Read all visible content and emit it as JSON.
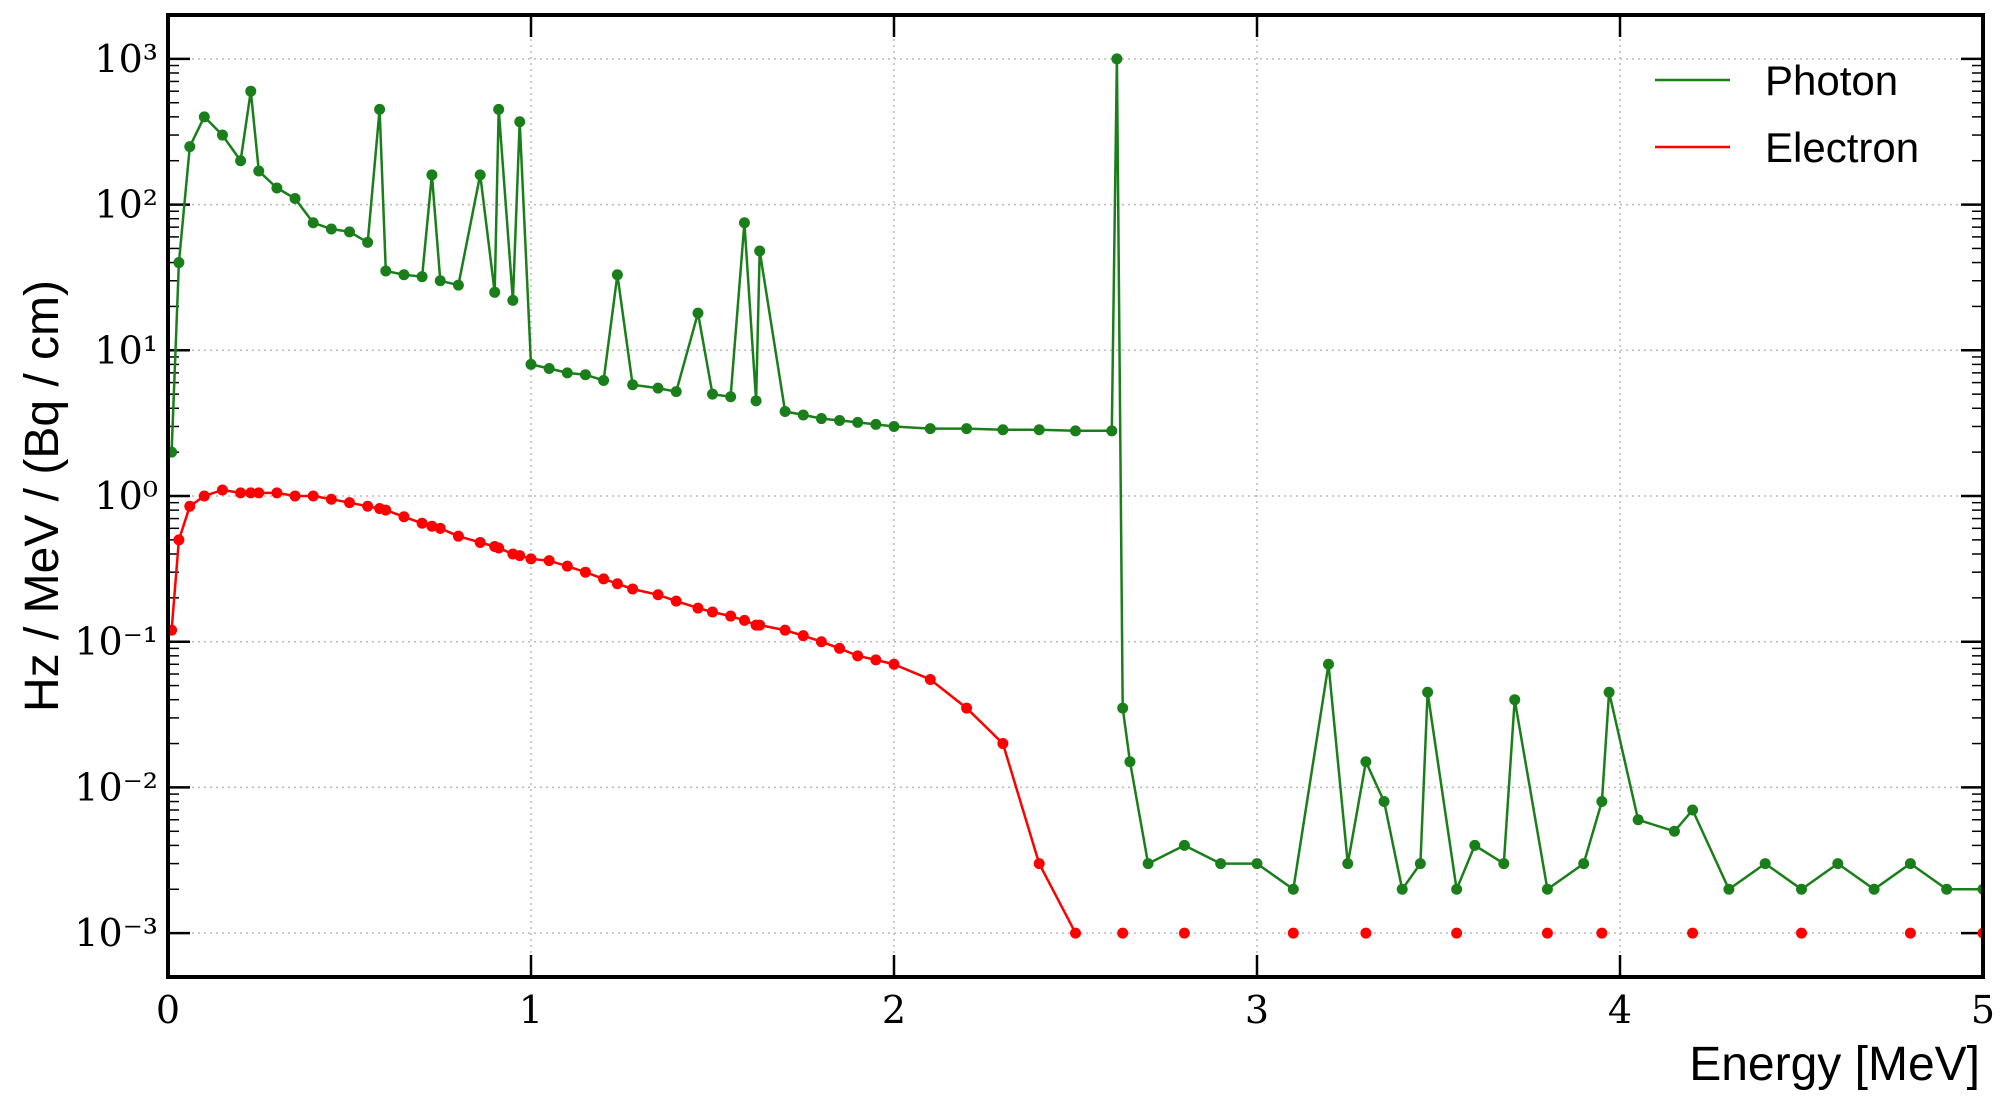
{
  "chart_data": {
    "type": "line",
    "xlabel": "Energy [MeV]",
    "ylabel": "Hz / MeV / (Bq / cm)",
    "yscale": "log",
    "grid": true,
    "legend": "upper right",
    "xlim": [
      0,
      5
    ],
    "xticks": [
      0,
      1,
      2,
      3,
      4,
      5
    ],
    "ylim": [
      0.0005,
      2000
    ],
    "yticks": [
      {
        "value": 0.001,
        "label": "10⁻³"
      },
      {
        "value": 0.01,
        "label": "10⁻²"
      },
      {
        "value": 0.1,
        "label": "10⁻¹"
      },
      {
        "value": 1,
        "label": "10⁰"
      },
      {
        "value": 10,
        "label": "10¹"
      },
      {
        "value": 100,
        "label": "10²"
      },
      {
        "value": 1000,
        "label": "10³"
      }
    ],
    "x": [
      0.01,
      0.03,
      0.06,
      0.1,
      0.15,
      0.2,
      0.228,
      0.25,
      0.3,
      0.35,
      0.4,
      0.45,
      0.5,
      0.55,
      0.583,
      0.6,
      0.65,
      0.7,
      0.727,
      0.75,
      0.8,
      0.86,
      0.9,
      0.911,
      0.95,
      0.969,
      1.0,
      1.05,
      1.1,
      1.15,
      1.2,
      1.238,
      1.28,
      1.35,
      1.4,
      1.46,
      1.5,
      1.55,
      1.588,
      1.62,
      1.63,
      1.7,
      1.75,
      1.8,
      1.85,
      1.9,
      1.95,
      2.0,
      2.1,
      2.2,
      2.3,
      2.4,
      2.5,
      2.6,
      2.614,
      2.63,
      2.65,
      2.7,
      2.8,
      2.9,
      3.0,
      3.1,
      3.197,
      3.25,
      3.3,
      3.35,
      3.4,
      3.45,
      3.47,
      3.55,
      3.6,
      3.68,
      3.71,
      3.8,
      3.9,
      3.95,
      3.97,
      4.05,
      4.15,
      4.2,
      4.3,
      4.4,
      4.5,
      4.6,
      4.7,
      4.8,
      4.9,
      5.0
    ],
    "series": [
      {
        "name": "Photon",
        "color": "#1a7f1a",
        "values": [
          2,
          40,
          250,
          400,
          300,
          200,
          600,
          170,
          130,
          110,
          75,
          68,
          65,
          55,
          450,
          35,
          33,
          32,
          160,
          30,
          28,
          160,
          25,
          450,
          22,
          370,
          8,
          7.5,
          7,
          6.8,
          6.2,
          33,
          5.8,
          5.5,
          5.2,
          18,
          5,
          4.8,
          75,
          4.5,
          48,
          3.8,
          3.6,
          3.4,
          3.3,
          3.2,
          3.1,
          3.0,
          2.9,
          2.9,
          2.85,
          2.85,
          2.8,
          2.8,
          1000,
          0.035,
          0.015,
          0.003,
          0.004,
          0.003,
          0.003,
          0.002,
          0.07,
          0.003,
          0.015,
          0.008,
          0.002,
          0.003,
          0.045,
          0.002,
          0.004,
          0.003,
          0.04,
          0.002,
          0.003,
          0.008,
          0.045,
          0.006,
          0.005,
          0.007,
          0.002,
          0.003,
          0.002,
          0.003,
          0.002,
          0.003,
          0.002,
          0.002
        ]
      },
      {
        "name": "Electron",
        "color": "#ff0000",
        "values": [
          0.12,
          0.5,
          0.85,
          1.0,
          1.1,
          1.05,
          1.05,
          1.05,
          1.05,
          1.0,
          1.0,
          0.95,
          0.9,
          0.85,
          0.82,
          0.8,
          0.72,
          0.65,
          0.62,
          0.6,
          0.53,
          0.48,
          0.45,
          0.44,
          0.4,
          0.39,
          0.37,
          0.36,
          0.33,
          0.3,
          0.27,
          0.25,
          0.23,
          0.21,
          0.19,
          0.17,
          0.16,
          0.15,
          0.14,
          0.13,
          0.13,
          0.12,
          0.11,
          0.1,
          0.09,
          0.08,
          0.075,
          0.07,
          0.055,
          0.035,
          0.02,
          0.003,
          0.001,
          null,
          null,
          0.001,
          null,
          null,
          0.001,
          null,
          null,
          0.001,
          null,
          null,
          0.001,
          null,
          null,
          null,
          null,
          0.001,
          null,
          null,
          null,
          0.001,
          null,
          0.001,
          null,
          null,
          null,
          0.001,
          null,
          null,
          0.001,
          null,
          null,
          0.001,
          null,
          0.001
        ]
      }
    ]
  }
}
